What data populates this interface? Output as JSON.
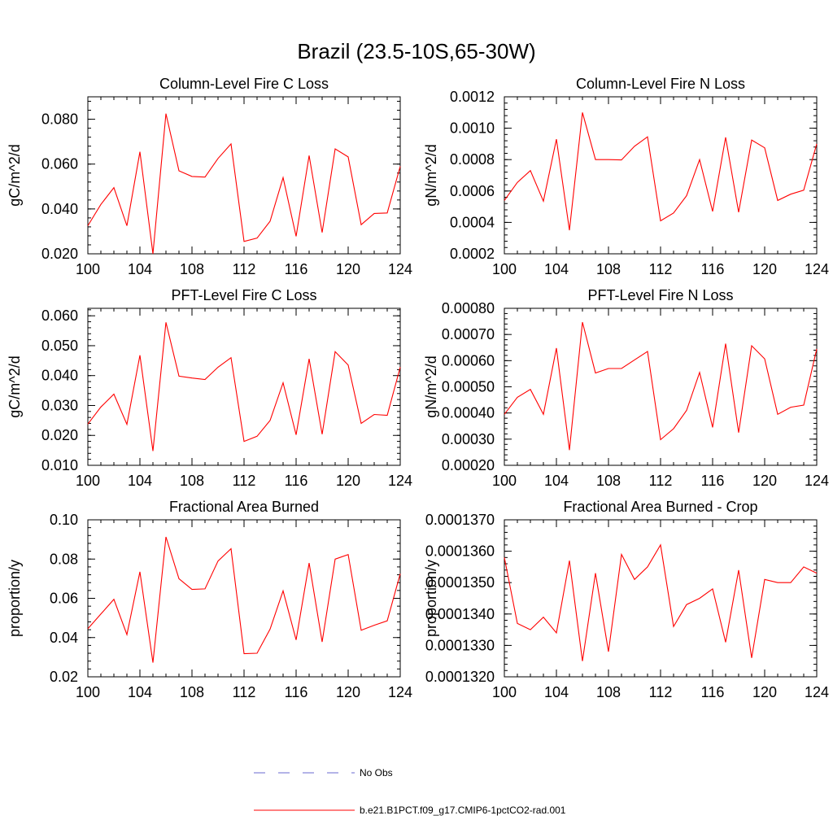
{
  "title": "Brazil (23.5-10S,65-30W)",
  "legend": [
    {
      "label": "No Obs",
      "color": "#6a6ad0",
      "dash": true
    },
    {
      "label": "b.e21.B1PCT.f09_g17.CMIP6-1pctCO2-rad.001",
      "color": "#ff0000",
      "dash": false
    }
  ],
  "chart_data": [
    {
      "type": "line",
      "title": "Column-Level Fire C Loss",
      "ylabel": "gC/m^2/d",
      "xlim": [
        100,
        124
      ],
      "ylim": [
        0.02,
        0.09
      ],
      "xticks": [
        100,
        104,
        108,
        112,
        116,
        120,
        124
      ],
      "xtick_labels": [
        "100",
        "104",
        "108",
        "112",
        "116",
        "120",
        "124"
      ],
      "yticks": [
        0.02,
        0.04,
        0.06,
        0.08
      ],
      "ytick_labels": [
        "0.020",
        "0.040",
        "0.060",
        "0.080"
      ],
      "series": [
        {
          "color": "#ff0000",
          "x": [
            100,
            101,
            102,
            103,
            104,
            105,
            106,
            107,
            108,
            109,
            110,
            111,
            112,
            113,
            114,
            115,
            116,
            117,
            118,
            119,
            120,
            121,
            122,
            123,
            124
          ],
          "y": [
            0.0325,
            0.042,
            0.0495,
            0.0325,
            0.0655,
            0.02,
            0.0825,
            0.057,
            0.0545,
            0.0542,
            0.0625,
            0.069,
            0.0255,
            0.027,
            0.0345,
            0.054,
            0.0278,
            0.0638,
            0.0295,
            0.0668,
            0.0632,
            0.033,
            0.038,
            0.0382,
            0.059
          ]
        }
      ]
    },
    {
      "type": "line",
      "title": "Column-Level Fire N Loss",
      "ylabel": "gN/m^2/d",
      "xlim": [
        100,
        124
      ],
      "ylim": [
        0.0002,
        0.0012
      ],
      "xticks": [
        100,
        104,
        108,
        112,
        116,
        120,
        124
      ],
      "xtick_labels": [
        "100",
        "104",
        "108",
        "112",
        "116",
        "120",
        "124"
      ],
      "yticks": [
        0.0002,
        0.0004,
        0.0006,
        0.0008,
        0.001,
        0.0012
      ],
      "ytick_labels": [
        "0.0002",
        "0.0004",
        "0.0006",
        "0.0008",
        "0.0010",
        "0.0012"
      ],
      "series": [
        {
          "color": "#ff0000",
          "x": [
            100,
            101,
            102,
            103,
            104,
            105,
            106,
            107,
            108,
            109,
            110,
            111,
            112,
            113,
            114,
            115,
            116,
            117,
            118,
            119,
            120,
            121,
            122,
            123,
            124
          ],
          "y": [
            0.00054,
            0.000655,
            0.00073,
            0.000535,
            0.00093,
            0.00035,
            0.0011,
            0.0008,
            0.0008,
            0.000798,
            0.000885,
            0.000945,
            0.00041,
            0.00046,
            0.00057,
            0.0008,
            0.00047,
            0.000942,
            0.000465,
            0.000925,
            0.000875,
            0.00054,
            0.00058,
            0.000605,
            0.0009
          ]
        }
      ]
    },
    {
      "type": "line",
      "title": "PFT-Level Fire C Loss",
      "ylabel": "gC/m^2/d",
      "xlim": [
        100,
        124
      ],
      "ylim": [
        0.01,
        0.0625
      ],
      "xticks": [
        100,
        104,
        108,
        112,
        116,
        120,
        124
      ],
      "xtick_labels": [
        "100",
        "104",
        "108",
        "112",
        "116",
        "120",
        "124"
      ],
      "yticks": [
        0.01,
        0.02,
        0.03,
        0.04,
        0.05,
        0.06
      ],
      "ytick_labels": [
        "0.010",
        "0.020",
        "0.030",
        "0.040",
        "0.050",
        "0.060"
      ],
      "series": [
        {
          "color": "#ff0000",
          "x": [
            100,
            101,
            102,
            103,
            104,
            105,
            106,
            107,
            108,
            109,
            110,
            111,
            112,
            113,
            114,
            115,
            116,
            117,
            118,
            119,
            120,
            121,
            122,
            123,
            124
          ],
          "y": [
            0.0238,
            0.0295,
            0.0338,
            0.0237,
            0.0468,
            0.0148,
            0.0578,
            0.0398,
            0.0392,
            0.0387,
            0.0428,
            0.046,
            0.018,
            0.0197,
            0.025,
            0.0376,
            0.0202,
            0.0456,
            0.0204,
            0.048,
            0.0435,
            0.024,
            0.027,
            0.0267,
            0.0428
          ]
        }
      ]
    },
    {
      "type": "line",
      "title": "PFT-Level Fire N Loss",
      "ylabel": "gN/m^2/d",
      "xlim": [
        100,
        124
      ],
      "ylim": [
        0.0002,
        0.0008
      ],
      "xticks": [
        100,
        104,
        108,
        112,
        116,
        120,
        124
      ],
      "xtick_labels": [
        "100",
        "104",
        "108",
        "112",
        "116",
        "120",
        "124"
      ],
      "yticks": [
        0.0002,
        0.0003,
        0.0004,
        0.0005,
        0.0006,
        0.0007,
        0.0008
      ],
      "ytick_labels": [
        "0.00020",
        "0.00030",
        "0.00040",
        "0.00050",
        "0.00060",
        "0.00070",
        "0.00080"
      ],
      "series": [
        {
          "color": "#ff0000",
          "x": [
            100,
            101,
            102,
            103,
            104,
            105,
            106,
            107,
            108,
            109,
            110,
            111,
            112,
            113,
            114,
            115,
            116,
            117,
            118,
            119,
            120,
            121,
            122,
            123,
            124
          ],
          "y": [
            0.000395,
            0.00046,
            0.00049,
            0.000395,
            0.000648,
            0.000258,
            0.000747,
            0.000553,
            0.00057,
            0.00057,
            0.000603,
            0.000635,
            0.000298,
            0.00034,
            0.00041,
            0.000555,
            0.000345,
            0.000665,
            0.000325,
            0.000657,
            0.000607,
            0.000395,
            0.000422,
            0.00043,
            0.000645
          ]
        }
      ]
    },
    {
      "type": "line",
      "title": "Fractional Area Burned",
      "ylabel": "proportion/y",
      "xlim": [
        100,
        124
      ],
      "ylim": [
        0.02,
        0.1
      ],
      "xticks": [
        100,
        104,
        108,
        112,
        116,
        120,
        124
      ],
      "xtick_labels": [
        "100",
        "104",
        "108",
        "112",
        "116",
        "120",
        "124"
      ],
      "yticks": [
        0.02,
        0.04,
        0.06,
        0.08,
        0.1
      ],
      "ytick_labels": [
        "0.02",
        "0.04",
        "0.06",
        "0.08",
        "0.10"
      ],
      "series": [
        {
          "color": "#ff0000",
          "x": [
            100,
            101,
            102,
            103,
            104,
            105,
            106,
            107,
            108,
            109,
            110,
            111,
            112,
            113,
            114,
            115,
            116,
            117,
            118,
            119,
            120,
            121,
            122,
            123,
            124
          ],
          "y": [
            0.0445,
            0.052,
            0.0595,
            0.0415,
            0.0735,
            0.0272,
            0.0913,
            0.07,
            0.0645,
            0.0648,
            0.079,
            0.0853,
            0.0318,
            0.032,
            0.0443,
            0.0638,
            0.0388,
            0.078,
            0.0378,
            0.08,
            0.0823,
            0.0437,
            0.0463,
            0.0485,
            0.0725
          ]
        }
      ]
    },
    {
      "type": "line",
      "title": "Fractional Area Burned - Crop",
      "ylabel": "proportion/y",
      "xlim": [
        100,
        124
      ],
      "ylim": [
        0.000132,
        0.000137
      ],
      "xticks": [
        100,
        104,
        108,
        112,
        116,
        120,
        124
      ],
      "xtick_labels": [
        "100",
        "104",
        "108",
        "112",
        "116",
        "120",
        "124"
      ],
      "yticks": [
        0.000132,
        0.000133,
        0.000134,
        0.000135,
        0.000136,
        0.000137
      ],
      "ytick_labels": [
        "0.0001320",
        "0.0001330",
        "0.0001340",
        "0.0001350",
        "0.0001360",
        "0.0001370"
      ],
      "series": [
        {
          "color": "#ff0000",
          "x": [
            100,
            101,
            102,
            103,
            104,
            105,
            106,
            107,
            108,
            109,
            110,
            111,
            112,
            113,
            114,
            115,
            116,
            117,
            118,
            119,
            120,
            121,
            122,
            123,
            124
          ],
          "y": [
            0.0001358,
            0.0001337,
            0.0001335,
            0.0001339,
            0.0001334,
            0.0001357,
            0.0001325,
            0.0001353,
            0.0001328,
            0.0001359,
            0.0001351,
            0.0001355,
            0.0001362,
            0.0001336,
            0.0001343,
            0.0001345,
            0.0001348,
            0.0001331,
            0.0001354,
            0.0001326,
            0.0001351,
            0.000135,
            0.000135,
            0.0001355,
            0.0001353
          ]
        }
      ]
    }
  ]
}
